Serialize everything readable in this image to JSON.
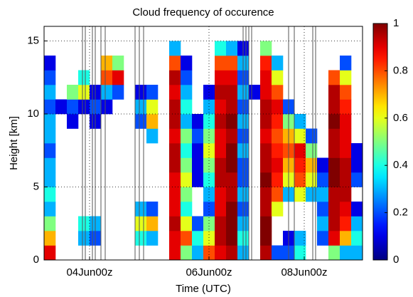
{
  "chart_data": {
    "type": "heatmap",
    "title": "Cloud frequency of occurence",
    "x_label": "Time (UTC)",
    "y_label": "Height [km]",
    "xlim": [
      0,
      112
    ],
    "ylim": [
      0,
      16
    ],
    "xticks": [
      {
        "value": 16,
        "label": "04Jun00z"
      },
      {
        "value": 58,
        "label": "06Jun00z"
      },
      {
        "value": 91.5,
        "label": "08Jun00z"
      }
    ],
    "yticks": [
      0,
      5,
      10,
      15
    ],
    "grid": true,
    "colormap": "jet",
    "clim": [
      0,
      1
    ],
    "colorbar_ticks": [
      0,
      0.2,
      0.4,
      0.6,
      0.8,
      1
    ],
    "x": [
      2,
      6,
      10,
      14,
      18,
      22,
      26,
      30,
      34,
      38,
      42,
      46,
      50,
      54,
      58,
      62,
      66,
      70,
      74,
      78,
      82,
      86,
      90,
      94,
      98,
      102,
      106,
      110
    ],
    "y": [
      0.5,
      1.5,
      2.5,
      3.5,
      4.5,
      5.5,
      6.5,
      7.5,
      8.5,
      9.5,
      10.5,
      11.5,
      12.5,
      13.5,
      14.5,
      15.5
    ],
    "gaps": [
      13.5,
      14.5,
      17,
      18,
      20,
      21.5,
      32,
      33.5,
      35,
      70,
      71,
      72,
      73,
      86,
      88,
      94.5,
      95.5
    ],
    "values": [
      [
        0.9,
        0.7,
        0.5,
        0.3,
        0.4,
        0.3,
        0.3,
        0.2,
        0.3,
        0.3,
        0.2,
        0.3,
        0.2,
        0.1,
        null,
        null
      ],
      [
        null,
        null,
        null,
        null,
        null,
        null,
        null,
        null,
        null,
        null,
        0.1,
        null,
        null,
        null,
        null,
        null
      ],
      [
        null,
        null,
        null,
        null,
        null,
        null,
        null,
        null,
        null,
        0.1,
        0.2,
        0.5,
        null,
        null,
        null,
        null
      ],
      [
        null,
        0.3,
        0.4,
        null,
        null,
        null,
        null,
        null,
        null,
        null,
        0.1,
        0.6,
        0.4,
        null,
        null,
        null
      ],
      [
        null,
        0.2,
        0.3,
        null,
        null,
        null,
        null,
        null,
        null,
        0.1,
        0.2,
        0.1,
        null,
        null,
        null,
        null
      ],
      [
        null,
        null,
        null,
        null,
        null,
        null,
        null,
        null,
        null,
        null,
        0.1,
        0.3,
        0.8,
        0.7,
        null,
        null
      ],
      [
        null,
        null,
        null,
        null,
        null,
        null,
        null,
        null,
        null,
        null,
        null,
        0.2,
        0.9,
        0.5,
        null,
        null
      ],
      [
        null,
        null,
        null,
        null,
        null,
        null,
        null,
        null,
        null,
        null,
        null,
        null,
        null,
        null,
        null,
        null
      ],
      [
        null,
        0.4,
        0.6,
        0.3,
        null,
        null,
        null,
        null,
        null,
        0.2,
        0.3,
        0.1,
        null,
        null,
        null,
        null
      ],
      [
        null,
        0.3,
        0.7,
        0.2,
        null,
        null,
        null,
        null,
        0.3,
        0.7,
        0.6,
        0.2,
        null,
        null,
        null,
        null
      ],
      [
        null,
        null,
        null,
        null,
        null,
        null,
        null,
        null,
        null,
        null,
        null,
        null,
        null,
        null,
        null,
        null
      ],
      [
        0.9,
        0.9,
        0.95,
        0.9,
        0.9,
        0.9,
        0.95,
        0.95,
        0.9,
        0.95,
        0.95,
        0.9,
        0.95,
        0.8,
        0.3,
        null
      ],
      [
        0.5,
        0.8,
        0.6,
        0.4,
        0.5,
        0.6,
        0.5,
        0.4,
        0.5,
        0.3,
        0.4,
        0.3,
        0.2,
        0.1,
        null,
        null
      ],
      [
        0.3,
        0.4,
        0.2,
        null,
        null,
        0.1,
        0.1,
        0.1,
        0.2,
        0.1,
        null,
        null,
        null,
        null,
        null,
        null
      ],
      [
        0.8,
        0.6,
        0.5,
        0.2,
        0.3,
        0.4,
        0.5,
        0.6,
        0.5,
        0.4,
        0.3,
        0.1,
        null,
        null,
        null,
        null
      ],
      [
        0.9,
        0.95,
        0.95,
        0.9,
        0.9,
        0.95,
        0.95,
        0.9,
        0.9,
        0.95,
        0.9,
        0.95,
        0.9,
        0.8,
        0.4,
        null
      ],
      [
        0.95,
        1,
        1,
        1,
        0.95,
        0.95,
        1,
        1,
        0.95,
        1,
        0.95,
        0.95,
        0.9,
        0.8,
        0.3,
        null
      ],
      [
        0.3,
        0.4,
        0.3,
        0.2,
        0.3,
        0.2,
        0.2,
        0.3,
        0.2,
        0.3,
        0.2,
        0.3,
        0.2,
        0.3,
        0.1,
        null
      ],
      [
        null,
        null,
        null,
        null,
        null,
        null,
        null,
        null,
        null,
        null,
        null,
        0.1,
        null,
        null,
        null,
        null
      ],
      [
        0.95,
        1,
        1,
        0.95,
        0.95,
        1,
        0.95,
        0.95,
        0.9,
        0.95,
        0.95,
        0.9,
        0.9,
        0.85,
        0.5,
        null
      ],
      [
        0.2,
        null,
        null,
        0.6,
        0.8,
        0.85,
        0.9,
        0.85,
        0.8,
        0.85,
        0.9,
        0.8,
        0.6,
        0.3,
        null,
        null
      ],
      [
        0.2,
        0.1,
        null,
        null,
        0.3,
        0.6,
        0.7,
        0.8,
        0.7,
        0.5,
        0.2,
        null,
        null,
        null,
        null,
        null
      ],
      [
        0.4,
        0.3,
        null,
        null,
        0.6,
        0.8,
        0.85,
        0.9,
        0.6,
        0.3,
        null,
        null,
        null,
        null,
        null,
        null
      ],
      [
        null,
        null,
        null,
        null,
        0.3,
        0.6,
        0.7,
        0.5,
        0.2,
        null,
        null,
        null,
        null,
        null,
        null,
        null
      ],
      [
        null,
        0.2,
        0.3,
        0.2,
        0.3,
        0.2,
        0.1,
        null,
        null,
        null,
        null,
        null,
        null,
        null,
        null,
        null
      ],
      [
        0.5,
        0.9,
        0.95,
        0.95,
        0.95,
        1,
        1,
        0.95,
        0.95,
        1,
        0.95,
        0.95,
        0.8,
        null,
        null,
        null
      ],
      [
        0.3,
        0.7,
        0.85,
        0.9,
        0.95,
        0.95,
        0.95,
        0.9,
        0.9,
        0.9,
        0.85,
        0.8,
        0.6,
        0.2,
        null,
        null
      ],
      [
        0.3,
        0.4,
        0.3,
        0.1,
        null,
        0.2,
        0.1,
        0.1,
        null,
        null,
        null,
        null,
        null,
        null,
        null,
        null
      ]
    ]
  }
}
